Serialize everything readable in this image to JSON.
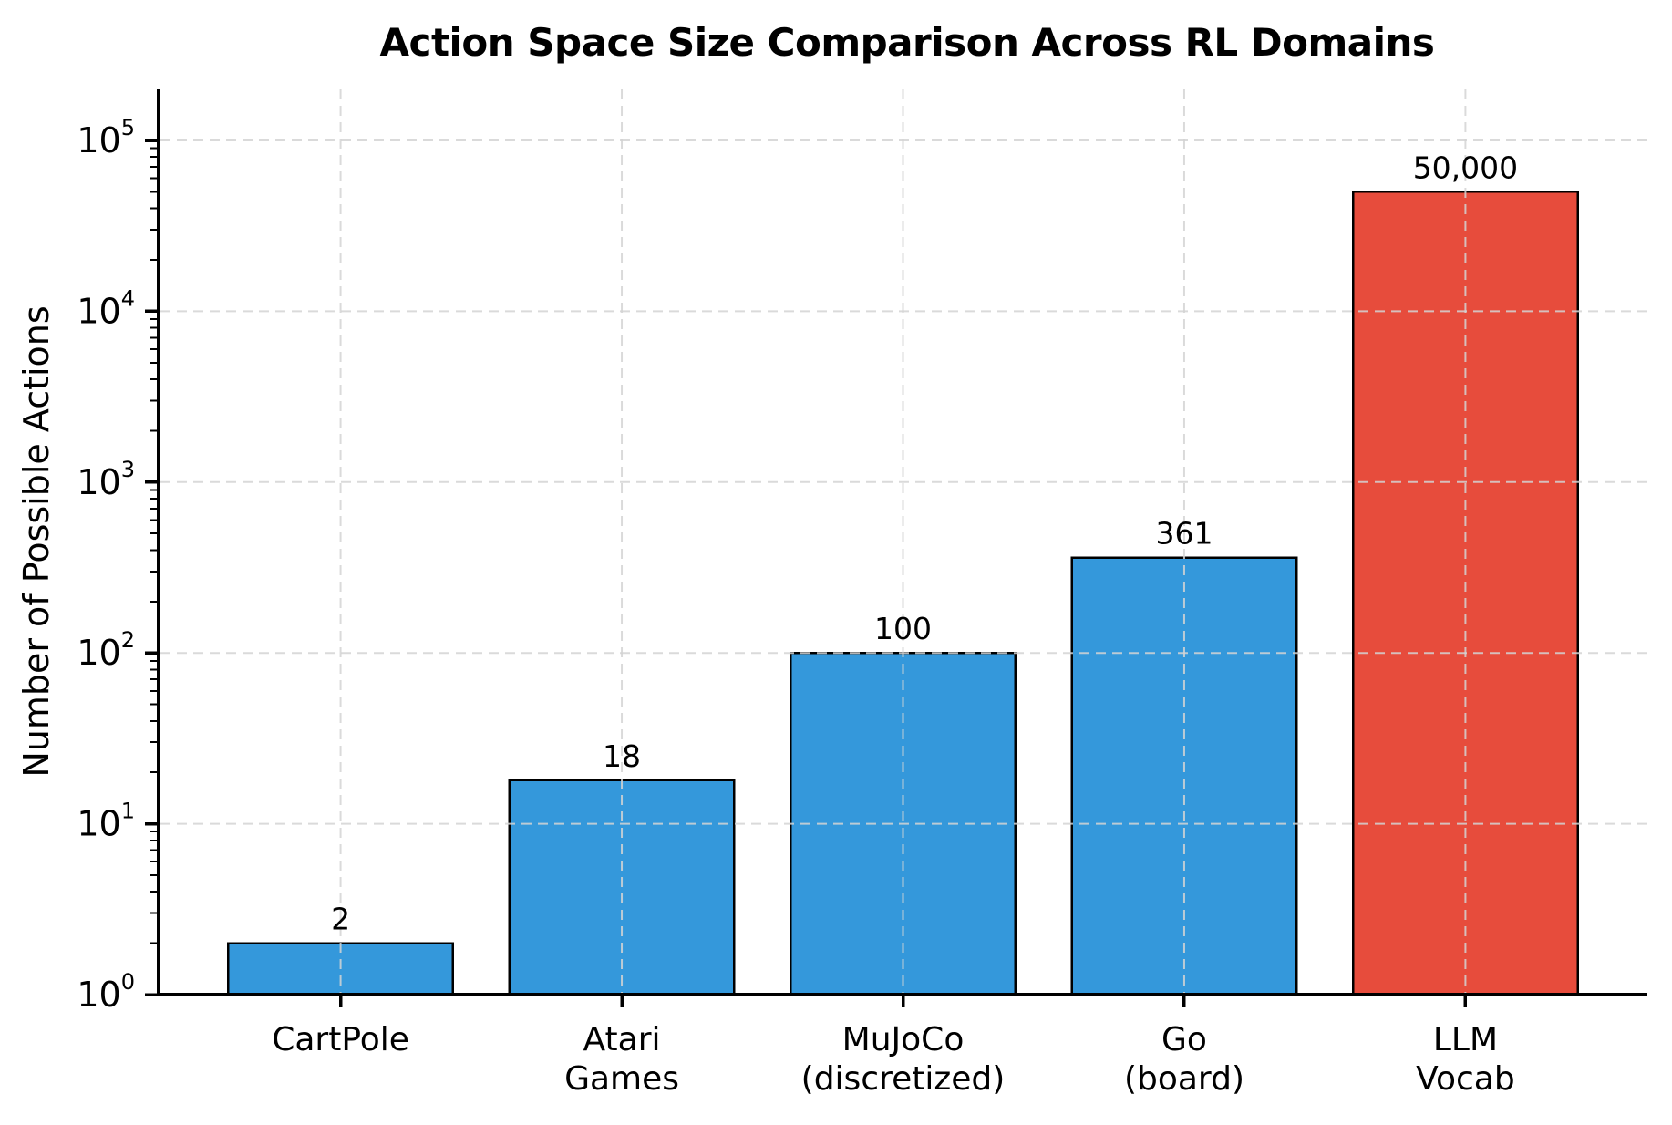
{
  "chart_data": {
    "type": "bar",
    "title": "Action Space Size Comparison Across RL Domains",
    "xlabel": "",
    "ylabel": "Number of Possible Actions",
    "categories": [
      "CartPole",
      "Atari\nGames",
      "MuJoCo\n(discretized)",
      "Go\n(board)",
      "LLM\nVocab"
    ],
    "values": [
      2,
      18,
      100,
      361,
      50000
    ],
    "value_labels": [
      "2",
      "18",
      "100",
      "361",
      "50,000"
    ],
    "bar_colors": [
      "#3498db",
      "#3498db",
      "#3498db",
      "#3498db",
      "#e74c3c"
    ],
    "bar_edge_color": "#000000",
    "bar_width_fraction": 0.8,
    "yscale": "log",
    "ylim": [
      1,
      200000
    ],
    "y_tick_exponents": [
      0,
      1,
      2,
      3,
      4,
      5
    ],
    "y_minor_ticks": true,
    "grid": {
      "visible": true,
      "style": "dashed",
      "color": "#d4d4d4",
      "above_bars": true
    },
    "legend": "none",
    "colors": {
      "bar_default": "#3498db",
      "bar_highlight": "#e74c3c",
      "grid": "#d4d4d4",
      "axis": "#000000",
      "text": "#000000"
    }
  }
}
